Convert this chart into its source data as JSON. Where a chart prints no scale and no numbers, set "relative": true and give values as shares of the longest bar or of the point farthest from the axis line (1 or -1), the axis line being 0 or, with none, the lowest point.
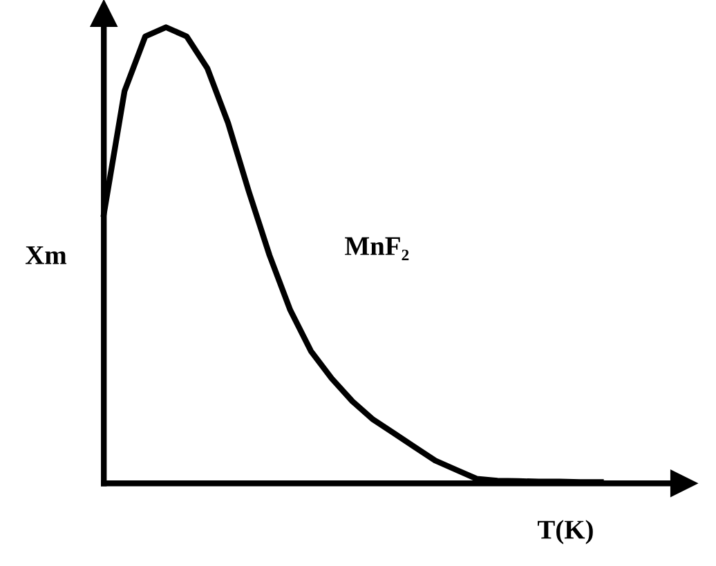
{
  "chart_data": {
    "type": "line",
    "relative": true,
    "xlabel": "T(K)",
    "ylabel": "Xm",
    "annotations": [
      "MnF₂"
    ],
    "categories": [
      null,
      null,
      null,
      null,
      null,
      null,
      null,
      null,
      null,
      null,
      null,
      null,
      null,
      null,
      null,
      null,
      null,
      null,
      null,
      null,
      null,
      null,
      null,
      null,
      null
    ],
    "series": [
      {
        "color": "#000000",
        "values": [
          0.59,
          0.86,
          0.98,
          1.0,
          0.98,
          0.91,
          0.79,
          0.64,
          0.5,
          0.38,
          0.29,
          0.23,
          0.18,
          0.14,
          0.11,
          0.08,
          0.05,
          0.03,
          0.01,
          0.006,
          0.005,
          0.004,
          0.004,
          0.003,
          0.003
        ]
      }
    ],
    "legend": false,
    "marker": "none",
    "line_style": "solid"
  }
}
